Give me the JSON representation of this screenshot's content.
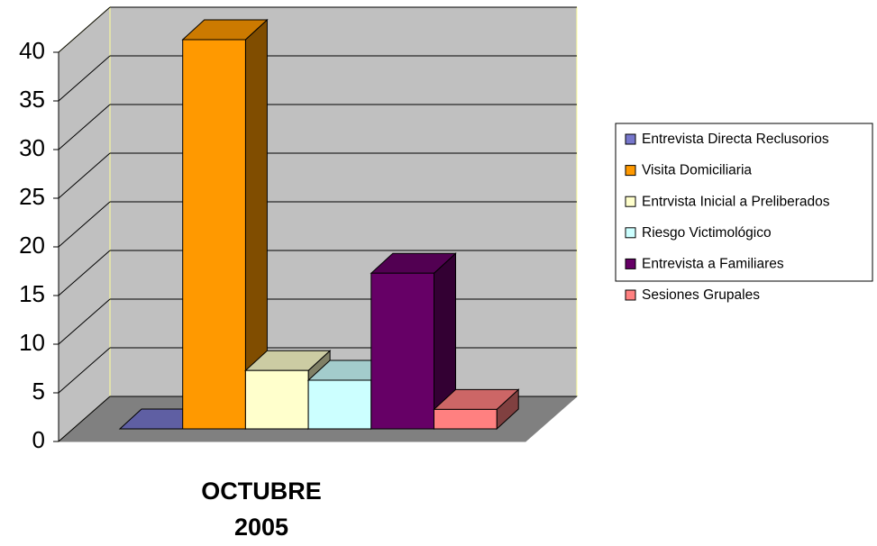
{
  "chart_data": {
    "type": "bar3d",
    "categories": [
      "OCTUBRE 2005"
    ],
    "series": [
      {
        "name": "Entrevista Directa Reclusorios",
        "color": "#7777cc",
        "values": [
          0
        ]
      },
      {
        "name": "Visita Domiciliaria",
        "color": "#ff9900",
        "values": [
          40
        ]
      },
      {
        "name": "Entrvista Inicial a Preliberados",
        "color": "#ffffcc",
        "values": [
          6
        ]
      },
      {
        "name": "Riesgo Victimológico",
        "color": "#ccffff",
        "values": [
          5
        ]
      },
      {
        "name": "Entrevista a Familiares",
        "color": "#660066",
        "values": [
          16
        ]
      },
      {
        "name": "Sesiones Grupales",
        "color": "#ff8080",
        "values": [
          2
        ]
      }
    ],
    "ylim": [
      0,
      40
    ],
    "yticks": [
      0,
      5,
      10,
      15,
      20,
      25,
      30,
      35,
      40
    ],
    "grid": true,
    "legend": "right"
  }
}
